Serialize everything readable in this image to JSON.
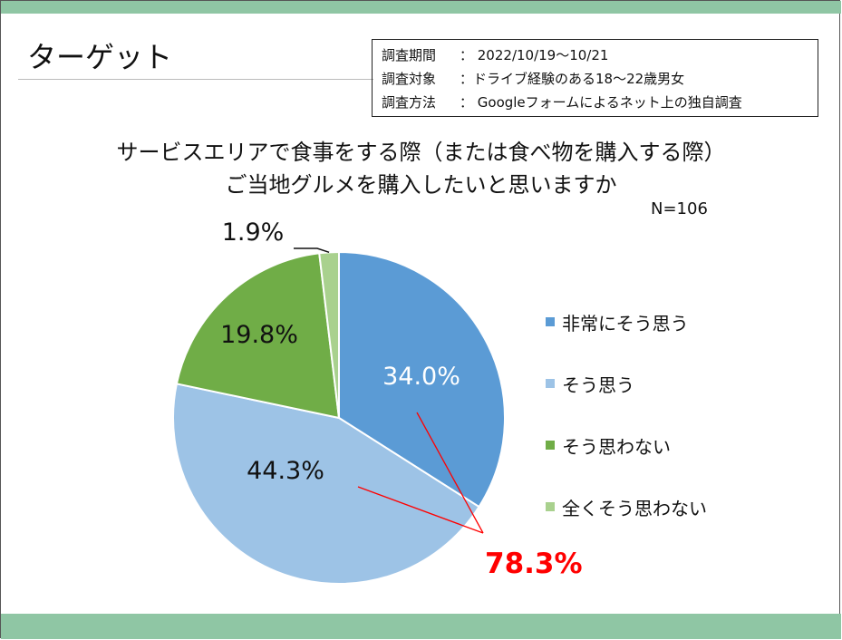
{
  "slide": {
    "title": "ターゲット",
    "survey": [
      {
        "key": "調査期間",
        "value": "： 2022/10/19〜10/21"
      },
      {
        "key": "調査対象",
        "value": "：ドライブ経験のある18〜22歳男女"
      },
      {
        "key": "調査方法",
        "value": "： Googleフォームによるネット上の独自調査"
      }
    ]
  },
  "chart_data": {
    "type": "pie",
    "title_lines": [
      "サービスエリアで食事をする際（または食べ物を購入する際）",
      "ご当地グルメを購入したいと思いますか"
    ],
    "n_label": "N=106",
    "slices": [
      {
        "label": "非常にそう思う",
        "value": 34.0,
        "display": "34.0%",
        "color": "#5b9bd5"
      },
      {
        "label": "そう思う",
        "value": 44.3,
        "display": "44.3%",
        "color": "#9dc3e6"
      },
      {
        "label": "そう思わない",
        "value": 19.8,
        "display": "19.8%",
        "color": "#70ad47"
      },
      {
        "label": "全くそう思わない",
        "value": 1.9,
        "display": "1.9%",
        "color": "#a9d18e"
      }
    ],
    "annotation": {
      "text": "78.3%",
      "color": "#ff0000"
    },
    "legend_position": "right"
  }
}
